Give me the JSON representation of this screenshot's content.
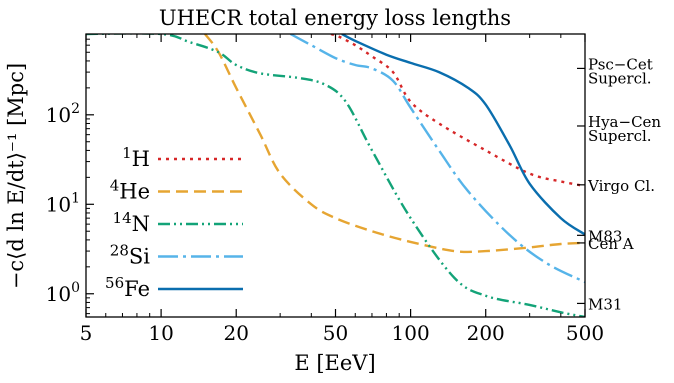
{
  "chart_data": {
    "type": "line",
    "title": "UHECR total energy loss lengths",
    "xlabel": "E [EeV]",
    "ylabel": "−c⟨d ln E/dt⟩⁻¹ [Mpc]",
    "xscale": "log",
    "yscale": "log",
    "xlim": [
      5,
      500
    ],
    "ylim": [
      0.55,
      800
    ],
    "x_ticks": [
      5,
      10,
      20,
      50,
      100,
      200,
      500
    ],
    "x_tick_labels": [
      "5",
      "10",
      "20",
      "50",
      "100",
      "200",
      "500"
    ],
    "y_ticks": [
      1,
      10,
      100
    ],
    "y_tick_labels": [
      "10",
      "10",
      "10"
    ],
    "y_tick_exponents": [
      "0",
      "1",
      "2"
    ],
    "legend_position": "left",
    "series": [
      {
        "name": "H",
        "name_superscript": "1",
        "color": "#d62728",
        "dash": "3,5",
        "points": [
          [
            48,
            800
          ],
          [
            52,
            740
          ],
          [
            60,
            600
          ],
          [
            70,
            450
          ],
          [
            85,
            300
          ],
          [
            100,
            140
          ],
          [
            130,
            80
          ],
          [
            200,
            40
          ],
          [
            300,
            22
          ],
          [
            400,
            18
          ],
          [
            500,
            16
          ]
        ]
      },
      {
        "name": "He",
        "name_superscript": "4",
        "color": "#e6a532",
        "dash": "12,6",
        "points": [
          [
            15,
            800
          ],
          [
            17,
            500
          ],
          [
            20,
            200
          ],
          [
            25,
            60
          ],
          [
            30,
            22
          ],
          [
            40,
            10
          ],
          [
            50,
            7
          ],
          [
            70,
            5
          ],
          [
            100,
            3.8
          ],
          [
            150,
            3
          ],
          [
            200,
            3.0
          ],
          [
            300,
            3.3
          ],
          [
            400,
            3.6
          ],
          [
            500,
            3.7
          ]
        ]
      },
      {
        "name": "N",
        "name_superscript": "14",
        "color": "#13a378",
        "dash": "12,4,2,4,2,4",
        "points": [
          [
            5,
            800
          ],
          [
            10,
            800
          ],
          [
            13,
            650
          ],
          [
            17,
            500
          ],
          [
            20,
            360
          ],
          [
            25,
            290
          ],
          [
            35,
            260
          ],
          [
            45,
            220
          ],
          [
            55,
            140
          ],
          [
            70,
            40
          ],
          [
            100,
            7
          ],
          [
            150,
            1.5
          ],
          [
            200,
            0.95
          ],
          [
            300,
            0.75
          ],
          [
            400,
            0.62
          ],
          [
            500,
            0.55
          ]
        ]
      },
      {
        "name": "Si",
        "name_superscript": "28",
        "color": "#56b4e9",
        "dash": "20,5,3,5",
        "points": [
          [
            33,
            800
          ],
          [
            40,
            600
          ],
          [
            50,
            430
          ],
          [
            60,
            360
          ],
          [
            70,
            330
          ],
          [
            85,
            240
          ],
          [
            100,
            120
          ],
          [
            130,
            40
          ],
          [
            170,
            14
          ],
          [
            250,
            4.5
          ],
          [
            350,
            2.2
          ],
          [
            500,
            1.35
          ]
        ]
      },
      {
        "name": "Fe",
        "name_superscript": "56",
        "color": "#0a6eae",
        "dash": "",
        "points": [
          [
            53,
            800
          ],
          [
            60,
            670
          ],
          [
            80,
            470
          ],
          [
            100,
            380
          ],
          [
            130,
            300
          ],
          [
            170,
            200
          ],
          [
            200,
            130
          ],
          [
            250,
            45
          ],
          [
            300,
            17
          ],
          [
            400,
            7
          ],
          [
            500,
            4.6
          ]
        ]
      }
    ],
    "reference_lines": [
      {
        "label": "Psc−Cet",
        "label2": "Supercl.",
        "y": 330
      },
      {
        "label": "Hya−Cen",
        "label2": "Supercl.",
        "y": 75
      },
      {
        "label": "Virgo Cl.",
        "label2": "",
        "y": 16.5
      },
      {
        "label": "M83",
        "label2": "",
        "y": 4.5
      },
      {
        "label": "Cen A",
        "label2": "",
        "y": 3.7
      },
      {
        "label": "M31",
        "label2": "",
        "y": 0.78
      }
    ]
  }
}
